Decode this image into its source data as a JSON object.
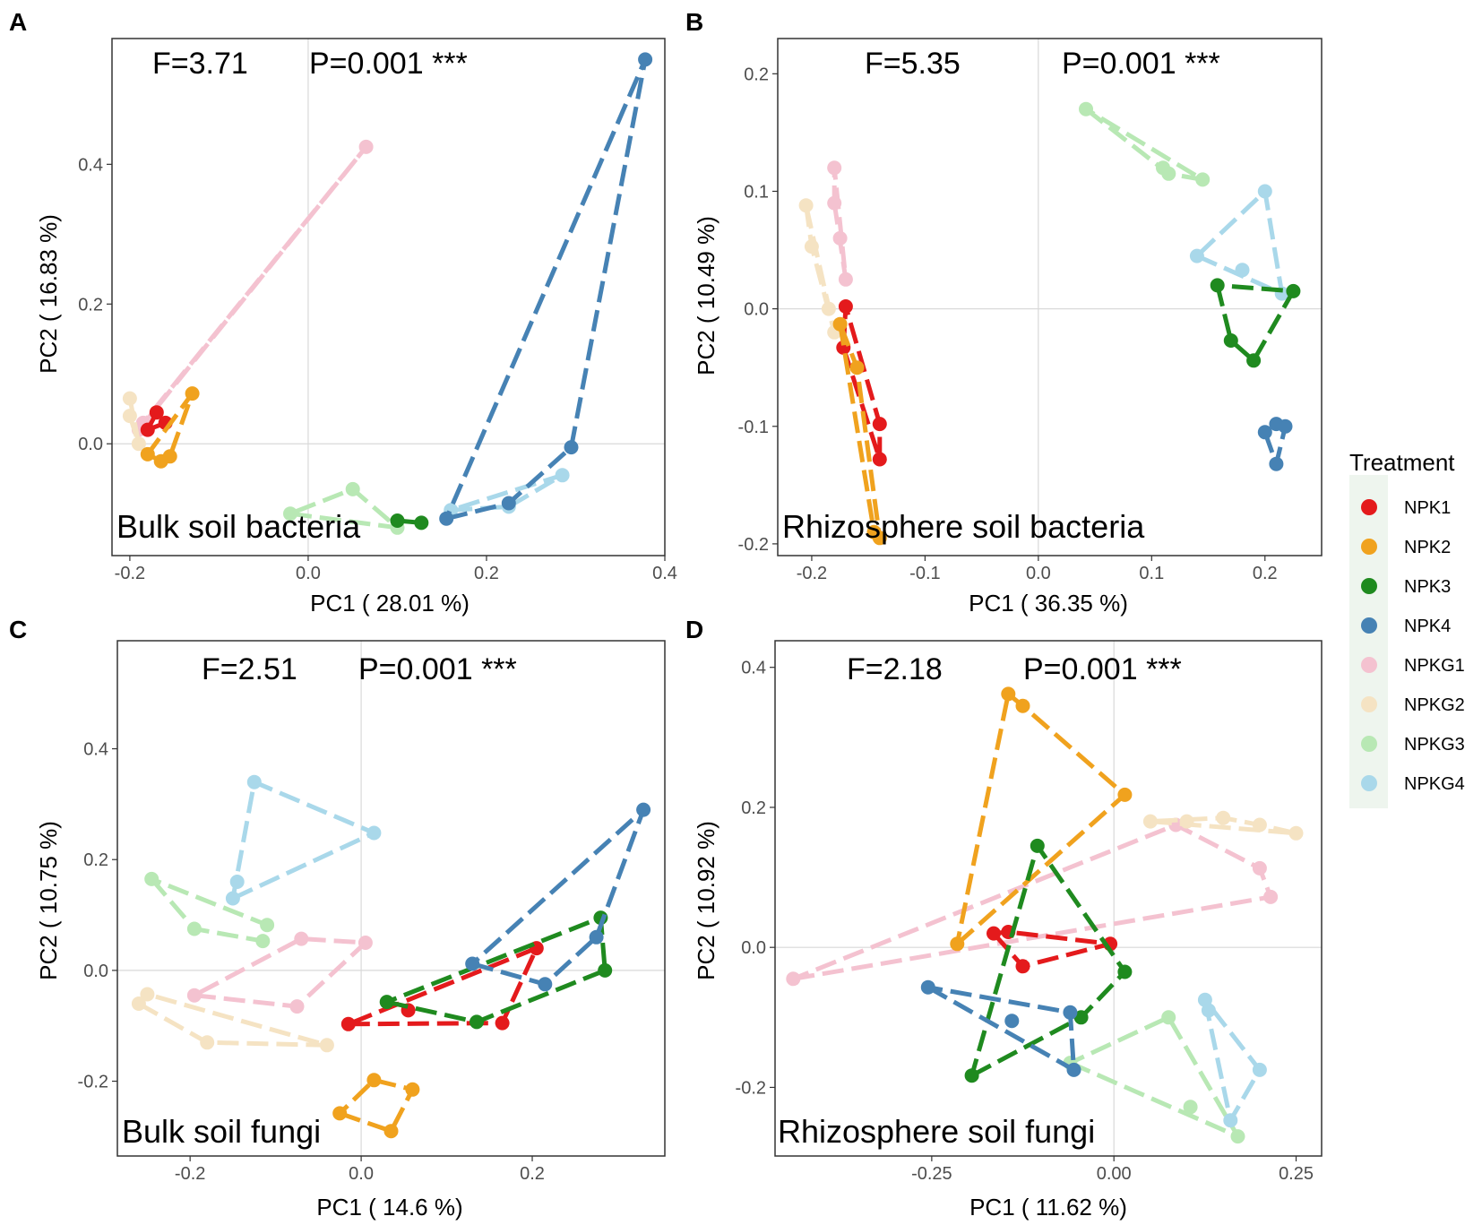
{
  "legend": {
    "title": "Treatment",
    "entries": [
      {
        "name": "NPK1",
        "color": "#e41a1c"
      },
      {
        "name": "NPK2",
        "color": "#f0a21e"
      },
      {
        "name": "NPK3",
        "color": "#1f8a1f"
      },
      {
        "name": "NPK4",
        "color": "#4682b4"
      },
      {
        "name": "NPKG1",
        "color": "#f4c2d0"
      },
      {
        "name": "NPKG2",
        "color": "#f5e3c3"
      },
      {
        "name": "NPKG3",
        "color": "#b8e8b4"
      },
      {
        "name": "NPKG4",
        "color": "#a9d8ea"
      }
    ]
  },
  "chart_data": [
    {
      "type": "scatter",
      "panel_letter": "A",
      "panel_label": "Bulk soil bacteria",
      "f_text": "F=3.71",
      "p_text": "P=0.001 ***",
      "xlabel": "PC1 ( 28.01 %)",
      "ylabel": "PC2 ( 16.83 %)",
      "xlim": [
        -0.22,
        0.4
      ],
      "ylim": [
        -0.16,
        0.58
      ],
      "xticks": [
        -0.2,
        0.0,
        0.2,
        0.4
      ],
      "xtick_labels": [
        "-0.2",
        "0.0",
        "0.2",
        "0.4"
      ],
      "yticks": [
        0.0,
        0.2,
        0.4
      ],
      "ytick_labels": [
        "0.0",
        "0.2",
        "0.4"
      ],
      "series": [
        {
          "name": "NPKG1",
          "points": [
            [
              -0.19,
              0.02
            ],
            [
              -0.185,
              0.03
            ],
            [
              0.065,
              0.425
            ]
          ]
        },
        {
          "name": "NPKG2",
          "points": [
            [
              -0.2,
              0.065
            ],
            [
              -0.2,
              0.04
            ],
            [
              -0.19,
              0.0
            ]
          ]
        },
        {
          "name": "NPKG3",
          "points": [
            [
              -0.02,
              -0.1
            ],
            [
              0.05,
              -0.065
            ],
            [
              0.1,
              -0.12
            ]
          ]
        },
        {
          "name": "NPKG4",
          "points": [
            [
              0.16,
              -0.095
            ],
            [
              0.225,
              -0.09
            ],
            [
              0.285,
              -0.045
            ]
          ]
        },
        {
          "name": "NPK1",
          "points": [
            [
              -0.18,
              0.02
            ],
            [
              -0.17,
              0.045
            ],
            [
              -0.16,
              0.03
            ]
          ]
        },
        {
          "name": "NPK2",
          "points": [
            [
              -0.18,
              -0.015
            ],
            [
              -0.165,
              -0.025
            ],
            [
              -0.155,
              -0.018
            ],
            [
              -0.13,
              0.072
            ]
          ]
        },
        {
          "name": "NPK3",
          "points": [
            [
              0.1,
              -0.11
            ],
            [
              0.127,
              -0.113
            ]
          ]
        },
        {
          "name": "NPK4",
          "points": [
            [
              0.155,
              -0.107
            ],
            [
              0.225,
              -0.085
            ],
            [
              0.295,
              -0.005
            ],
            [
              0.378,
              0.55
            ]
          ]
        }
      ]
    },
    {
      "type": "scatter",
      "panel_letter": "B",
      "panel_label": "Rhizosphere soil bacteria",
      "f_text": "F=5.35",
      "p_text": "P=0.001 ***",
      "xlabel": "PC1 ( 36.35 %)",
      "ylabel": "PC2 ( 10.49 %)",
      "xlim": [
        -0.23,
        0.25
      ],
      "ylim": [
        -0.21,
        0.23
      ],
      "xticks": [
        -0.2,
        -0.1,
        0.0,
        0.1,
        0.2
      ],
      "xtick_labels": [
        "-0.2",
        "-0.1",
        "0.0",
        "0.1",
        "0.2"
      ],
      "yticks": [
        -0.2,
        -0.1,
        0.0,
        0.1,
        0.2
      ],
      "ytick_labels": [
        "-0.2",
        "-0.1",
        "0.0",
        "0.1",
        "0.2"
      ],
      "series": [
        {
          "name": "NPKG1",
          "points": [
            [
              -0.18,
              0.12
            ],
            [
              -0.18,
              0.09
            ],
            [
              -0.175,
              0.06
            ],
            [
              -0.17,
              0.025
            ]
          ]
        },
        {
          "name": "NPKG2",
          "points": [
            [
              -0.205,
              0.088
            ],
            [
              -0.2,
              0.053
            ],
            [
              -0.185,
              0.0
            ],
            [
              -0.18,
              -0.02
            ]
          ]
        },
        {
          "name": "NPKG3",
          "points": [
            [
              0.042,
              0.17
            ],
            [
              0.11,
              0.12
            ],
            [
              0.115,
              0.115
            ],
            [
              0.145,
              0.11
            ]
          ]
        },
        {
          "name": "NPKG4",
          "points": [
            [
              0.14,
              0.045
            ],
            [
              0.18,
              0.033
            ],
            [
              0.2,
              0.1
            ],
            [
              0.215,
              0.013
            ]
          ]
        },
        {
          "name": "NPK1",
          "points": [
            [
              -0.17,
              0.002
            ],
            [
              -0.172,
              -0.033
            ],
            [
              -0.14,
              -0.098
            ],
            [
              -0.14,
              -0.128
            ]
          ]
        },
        {
          "name": "NPK2",
          "points": [
            [
              -0.175,
              -0.013
            ],
            [
              -0.16,
              -0.05
            ],
            [
              -0.14,
              -0.195
            ],
            [
              -0.145,
              -0.19
            ]
          ]
        },
        {
          "name": "NPK3",
          "points": [
            [
              0.158,
              0.02
            ],
            [
              0.17,
              -0.027
            ],
            [
              0.19,
              -0.044
            ],
            [
              0.225,
              0.015
            ]
          ]
        },
        {
          "name": "NPK4",
          "points": [
            [
              0.2,
              -0.105
            ],
            [
              0.21,
              -0.098
            ],
            [
              0.218,
              -0.1
            ],
            [
              0.21,
              -0.132
            ]
          ]
        }
      ]
    },
    {
      "type": "scatter",
      "panel_letter": "C",
      "panel_label": "Bulk soil fungi",
      "f_text": "F=2.51",
      "p_text": "P=0.001 ***",
      "xlabel": "PC1 ( 14.6 %)",
      "ylabel": "PC2 ( 10.75 %)",
      "xlim": [
        -0.285,
        0.355
      ],
      "ylim": [
        -0.335,
        0.595
      ],
      "xticks": [
        -0.2,
        0.0,
        0.2
      ],
      "xtick_labels": [
        "-0.2",
        "0.0",
        "0.2"
      ],
      "yticks": [
        -0.2,
        0.0,
        0.2,
        0.4
      ],
      "ytick_labels": [
        "-0.2",
        "0.0",
        "0.2",
        "0.4"
      ],
      "series": [
        {
          "name": "NPKG1",
          "points": [
            [
              -0.195,
              -0.045
            ],
            [
              -0.07,
              0.057
            ],
            [
              -0.075,
              -0.065
            ],
            [
              0.005,
              0.05
            ]
          ]
        },
        {
          "name": "NPKG2",
          "points": [
            [
              -0.26,
              -0.06
            ],
            [
              -0.25,
              -0.043
            ],
            [
              -0.18,
              -0.13
            ],
            [
              -0.04,
              -0.135
            ]
          ]
        },
        {
          "name": "NPKG3",
          "points": [
            [
              -0.245,
              0.165
            ],
            [
              -0.195,
              0.075
            ],
            [
              -0.115,
              0.053
            ],
            [
              -0.11,
              0.082
            ]
          ]
        },
        {
          "name": "NPKG4",
          "points": [
            [
              -0.145,
              0.16
            ],
            [
              -0.15,
              0.13
            ],
            [
              -0.125,
              0.34
            ],
            [
              0.015,
              0.248
            ]
          ]
        },
        {
          "name": "NPK1",
          "points": [
            [
              -0.015,
              -0.097
            ],
            [
              0.055,
              -0.072
            ],
            [
              0.165,
              -0.095
            ],
            [
              0.205,
              0.04
            ]
          ]
        },
        {
          "name": "NPK2",
          "points": [
            [
              -0.025,
              -0.258
            ],
            [
              0.015,
              -0.198
            ],
            [
              0.06,
              -0.215
            ],
            [
              0.035,
              -0.29
            ]
          ]
        },
        {
          "name": "NPK3",
          "points": [
            [
              0.03,
              -0.057
            ],
            [
              0.135,
              -0.093
            ],
            [
              0.285,
              0.0
            ],
            [
              0.28,
              0.095
            ]
          ]
        },
        {
          "name": "NPK4",
          "points": [
            [
              0.13,
              0.012
            ],
            [
              0.215,
              -0.025
            ],
            [
              0.275,
              0.06
            ],
            [
              0.33,
              0.29
            ]
          ]
        }
      ]
    },
    {
      "type": "scatter",
      "panel_letter": "D",
      "panel_label": "Rhizosphere soil fungi",
      "f_text": "F=2.18",
      "p_text": "P=0.001 ***",
      "xlabel": "PC1 ( 11.62 %)",
      "ylabel": "PC2 ( 10.92 %)",
      "xlim": [
        -0.465,
        0.285
      ],
      "ylim": [
        -0.298,
        0.438
      ],
      "xticks": [
        -0.25,
        0.0,
        0.25
      ],
      "xtick_labels": [
        "-0.25",
        "0.00",
        "0.25"
      ],
      "yticks": [
        -0.2,
        0.0,
        0.2,
        0.4
      ],
      "ytick_labels": [
        "-0.2",
        "0.0",
        "0.2",
        "0.4"
      ],
      "series": [
        {
          "name": "NPKG1",
          "points": [
            [
              -0.44,
              -0.045
            ],
            [
              0.085,
              0.175
            ],
            [
              0.2,
              0.113
            ],
            [
              0.215,
              0.072
            ]
          ]
        },
        {
          "name": "NPKG2",
          "points": [
            [
              0.05,
              0.18
            ],
            [
              0.1,
              0.18
            ],
            [
              0.15,
              0.185
            ],
            [
              0.2,
              0.175
            ],
            [
              0.25,
              0.163
            ]
          ]
        },
        {
          "name": "NPKG3",
          "points": [
            [
              -0.06,
              -0.165
            ],
            [
              0.075,
              -0.1
            ],
            [
              0.105,
              -0.228
            ],
            [
              0.17,
              -0.27
            ]
          ]
        },
        {
          "name": "NPKG4",
          "points": [
            [
              0.125,
              -0.075
            ],
            [
              0.13,
              -0.09
            ],
            [
              0.16,
              -0.247
            ],
            [
              0.2,
              -0.175
            ]
          ]
        },
        {
          "name": "NPK1",
          "points": [
            [
              -0.165,
              0.02
            ],
            [
              -0.145,
              0.022
            ],
            [
              -0.125,
              -0.027
            ],
            [
              -0.005,
              0.005
            ]
          ]
        },
        {
          "name": "NPK2",
          "points": [
            [
              -0.215,
              0.005
            ],
            [
              -0.145,
              0.362
            ],
            [
              -0.125,
              0.345
            ],
            [
              0.015,
              0.218
            ]
          ]
        },
        {
          "name": "NPK3",
          "points": [
            [
              -0.195,
              -0.183
            ],
            [
              -0.105,
              0.145
            ],
            [
              -0.045,
              -0.1
            ],
            [
              0.015,
              -0.035
            ]
          ]
        },
        {
          "name": "NPK4",
          "points": [
            [
              -0.255,
              -0.057
            ],
            [
              -0.14,
              -0.105
            ],
            [
              -0.06,
              -0.093
            ],
            [
              -0.055,
              -0.175
            ]
          ]
        }
      ]
    }
  ]
}
